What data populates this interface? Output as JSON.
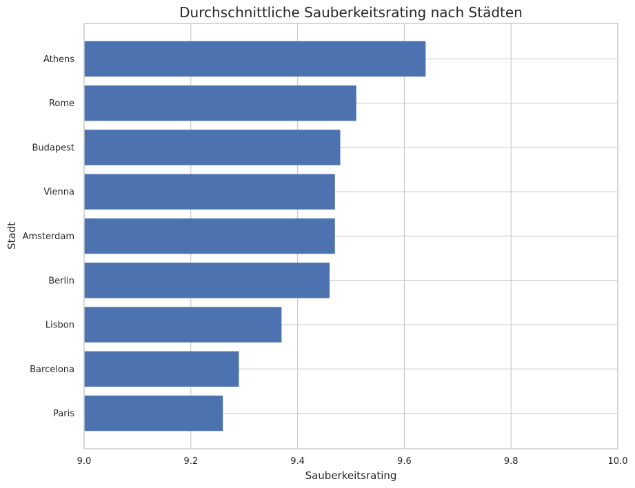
{
  "chart_data": {
    "type": "bar",
    "orientation": "horizontal",
    "title": "Durchschnittliche Sauberkeitsrating nach Städten",
    "xlabel": "Sauberkeitsrating",
    "ylabel": "Stadt",
    "categories": [
      "Athens",
      "Rome",
      "Budapest",
      "Vienna",
      "Amsterdam",
      "Berlin",
      "Lisbon",
      "Barcelona",
      "Paris"
    ],
    "values": [
      9.64,
      9.51,
      9.48,
      9.47,
      9.47,
      9.46,
      9.37,
      9.29,
      9.26
    ],
    "xlim": [
      9.0,
      10.0
    ],
    "xticks": [
      "9.0",
      "9.2",
      "9.4",
      "9.6",
      "9.8",
      "10.0"
    ],
    "grid": true,
    "bar_color": "#4c72b0"
  }
}
